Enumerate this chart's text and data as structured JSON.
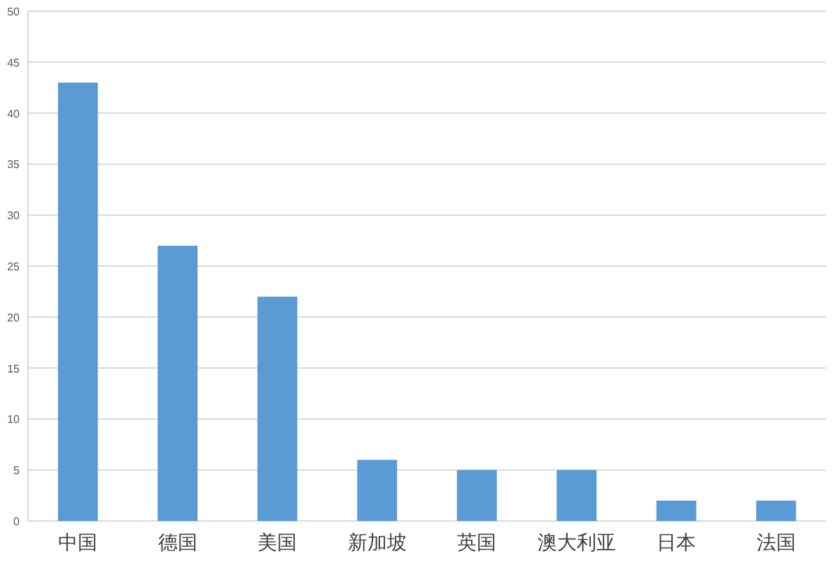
{
  "chart_data": {
    "type": "bar",
    "categories": [
      "中国",
      "德国",
      "美国",
      "新加坡",
      "英国",
      "澳大利亚",
      "日本",
      "法国"
    ],
    "values": [
      43,
      27,
      22,
      6,
      5,
      5,
      2,
      2
    ],
    "color": "#5b9bd5",
    "ylim": [
      0,
      50
    ],
    "yticks": [
      0,
      5,
      10,
      15,
      20,
      25,
      30,
      35,
      40,
      45,
      50
    ],
    "grid": "y"
  }
}
